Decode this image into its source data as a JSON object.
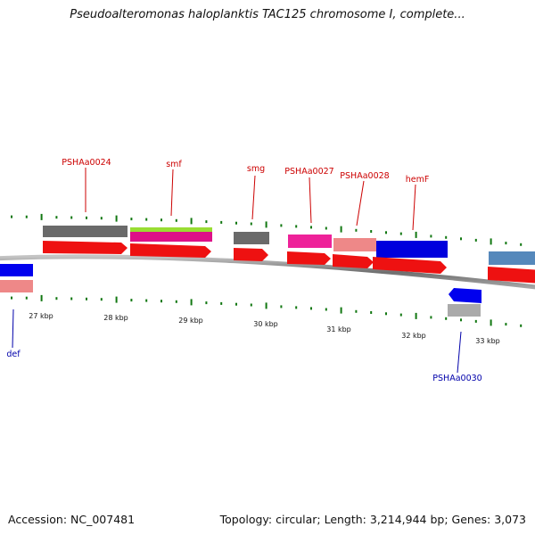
{
  "title": "Pseudoalteromonas haloplanktis TAC125 chromosome I, complete...",
  "footer": {
    "accession": "Accession: NC_007481",
    "stats": "Topology: circular; Length: 3,214,944 bp; Genes: 3,073"
  },
  "colors": {
    "label_forward": "#cc0000",
    "label_reverse": "#0000aa",
    "axis": "#777777",
    "ticks": "#117711"
  },
  "scale_labels": [
    "27 kbp",
    "28 kbp",
    "29 kbp",
    "30 kbp",
    "31 kbp",
    "32 kbp",
    "33 kbp"
  ],
  "gene_labels": {
    "forward": [
      "PSHAa0024",
      "smf",
      "smg",
      "PSHAa0027",
      "PSHAa0028",
      "hemF"
    ],
    "reverse": [
      "def",
      "PSHAa0030"
    ]
  }
}
